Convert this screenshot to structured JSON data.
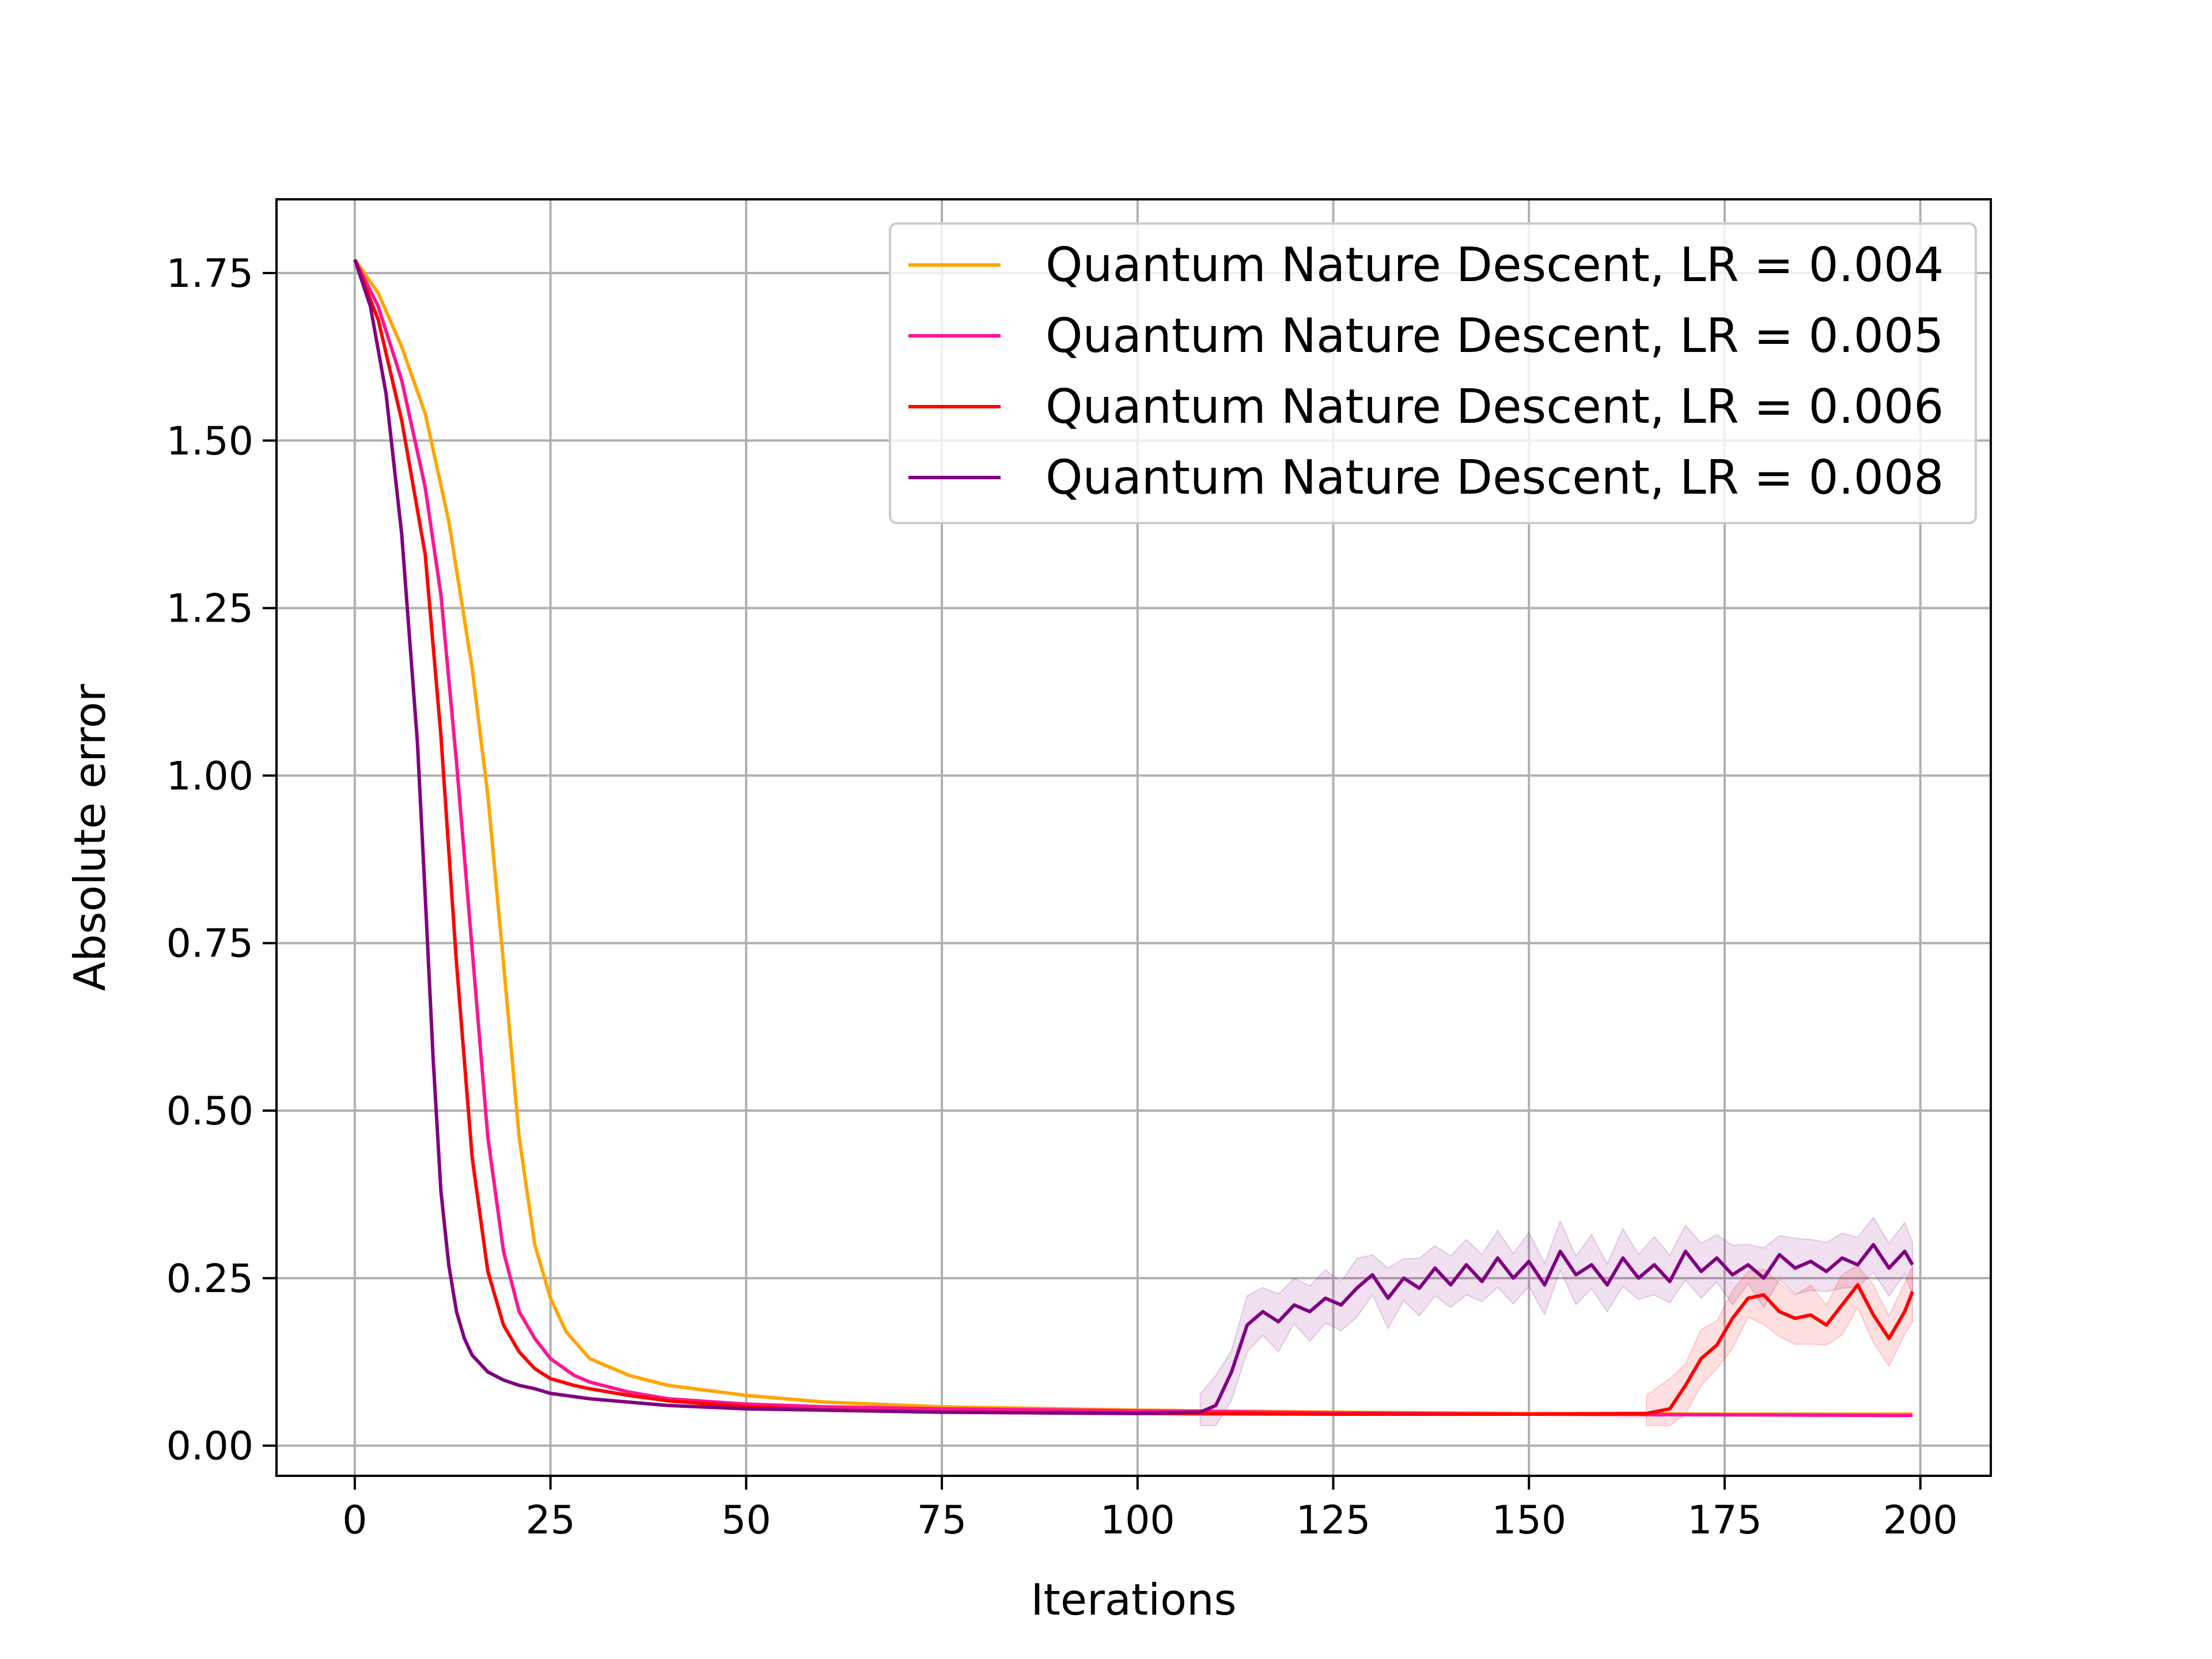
{
  "chart_data": {
    "type": "line",
    "title": "",
    "xlabel": "Iterations",
    "ylabel": "Absolute error",
    "xlim": [
      -10,
      209
    ],
    "ylim": [
      -0.045,
      1.86
    ],
    "xticks": [
      0,
      25,
      50,
      75,
      100,
      125,
      150,
      175,
      200
    ],
    "xtick_labels": [
      "0",
      "25",
      "50",
      "75",
      "100",
      "125",
      "150",
      "175",
      "200"
    ],
    "yticks": [
      0.0,
      0.25,
      0.5,
      0.75,
      1.0,
      1.25,
      1.5,
      1.75
    ],
    "ytick_labels": [
      "0.00",
      "0.25",
      "0.50",
      "0.75",
      "1.00",
      "1.25",
      "1.50",
      "1.75"
    ],
    "grid": true,
    "legend_position": "top-right",
    "series": [
      {
        "name": "Quantum Nature Descent, LR = 0.004",
        "color": "#FFA500",
        "x": [
          0,
          3,
          6,
          9,
          12,
          15,
          17,
          19,
          21,
          23,
          25,
          27,
          30,
          35,
          40,
          50,
          60,
          75,
          100,
          125,
          150,
          175,
          199
        ],
        "y": [
          1.77,
          1.72,
          1.64,
          1.54,
          1.38,
          1.16,
          0.97,
          0.72,
          0.46,
          0.3,
          0.22,
          0.17,
          0.13,
          0.105,
          0.09,
          0.075,
          0.065,
          0.058,
          0.053,
          0.05,
          0.048,
          0.047,
          0.047
        ]
      },
      {
        "name": "Quantum Nature Descent, LR = 0.005",
        "color": "#FF1493",
        "x": [
          0,
          3,
          6,
          9,
          11,
          13,
          15,
          17,
          19,
          21,
          23,
          25,
          28,
          30,
          35,
          40,
          50,
          60,
          75,
          100,
          125,
          150,
          175,
          199
        ],
        "y": [
          1.77,
          1.7,
          1.59,
          1.43,
          1.27,
          1.02,
          0.74,
          0.46,
          0.29,
          0.2,
          0.16,
          0.13,
          0.105,
          0.095,
          0.08,
          0.07,
          0.062,
          0.058,
          0.055,
          0.052,
          0.049,
          0.047,
          0.046,
          0.045
        ]
      },
      {
        "name": "Quantum Nature Descent, LR = 0.006",
        "color": "#FF0000",
        "x": [
          0,
          3,
          6,
          9,
          11,
          13,
          15,
          17,
          19,
          21,
          23,
          25,
          28,
          30,
          35,
          40,
          50,
          60,
          75,
          100,
          125,
          150,
          165,
          168,
          170,
          172,
          174,
          176,
          178,
          180,
          182,
          184,
          186,
          188,
          190,
          192,
          194,
          196,
          198,
          199
        ],
        "y": [
          1.77,
          1.68,
          1.53,
          1.33,
          1.06,
          0.72,
          0.43,
          0.26,
          0.18,
          0.14,
          0.115,
          0.1,
          0.09,
          0.085,
          0.075,
          0.067,
          0.058,
          0.053,
          0.05,
          0.048,
          0.047,
          0.047,
          0.048,
          0.055,
          0.09,
          0.13,
          0.15,
          0.19,
          0.22,
          0.225,
          0.2,
          0.19,
          0.195,
          0.18,
          0.21,
          0.24,
          0.195,
          0.16,
          0.2,
          0.23
        ]
      },
      {
        "name": "Quantum Nature Descent, LR = 0.008",
        "color": "#800080",
        "x": [
          0,
          2,
          4,
          6,
          8,
          9,
          10,
          11,
          12,
          13,
          14,
          15,
          17,
          19,
          21,
          23,
          25,
          30,
          40,
          50,
          75,
          100,
          108,
          110,
          112,
          114,
          116,
          118,
          120,
          122,
          124,
          126,
          128,
          130,
          132,
          134,
          136,
          138,
          140,
          142,
          144,
          146,
          148,
          150,
          152,
          154,
          156,
          158,
          160,
          162,
          164,
          166,
          168,
          170,
          172,
          174,
          176,
          178,
          180,
          182,
          184,
          186,
          188,
          190,
          192,
          194,
          196,
          198,
          199
        ],
        "y": [
          1.77,
          1.7,
          1.57,
          1.36,
          1.05,
          0.82,
          0.58,
          0.38,
          0.27,
          0.2,
          0.16,
          0.135,
          0.11,
          0.098,
          0.09,
          0.085,
          0.078,
          0.07,
          0.06,
          0.055,
          0.05,
          0.048,
          0.05,
          0.06,
          0.11,
          0.18,
          0.2,
          0.185,
          0.21,
          0.2,
          0.22,
          0.21,
          0.235,
          0.255,
          0.22,
          0.25,
          0.235,
          0.265,
          0.24,
          0.27,
          0.245,
          0.28,
          0.25,
          0.275,
          0.24,
          0.29,
          0.255,
          0.27,
          0.24,
          0.28,
          0.25,
          0.27,
          0.245,
          0.29,
          0.26,
          0.28,
          0.255,
          0.27,
          0.25,
          0.285,
          0.265,
          0.275,
          0.26,
          0.28,
          0.27,
          0.3,
          0.265,
          0.29,
          0.27
        ]
      }
    ]
  }
}
